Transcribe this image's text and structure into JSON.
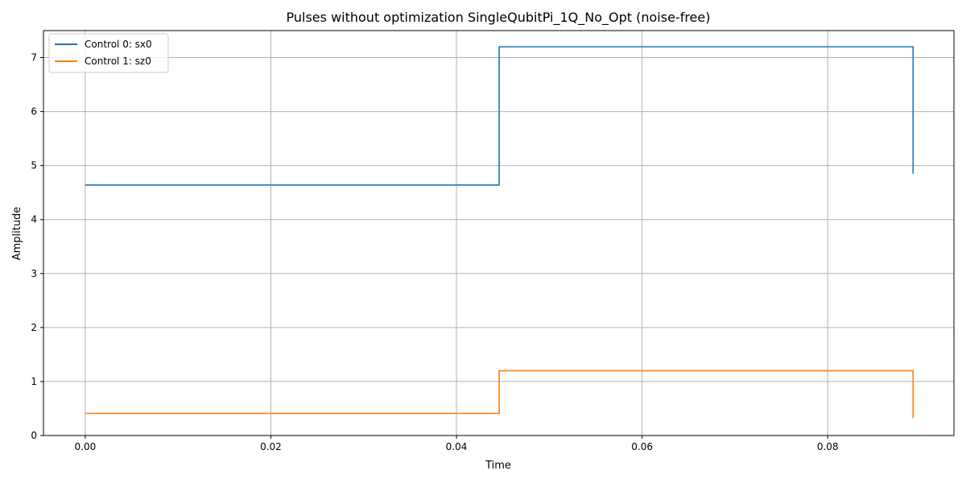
{
  "chart_data": {
    "type": "line",
    "drawstyle": "steps-post",
    "title": "Pulses without optimization SingleQubitPi_1Q_No_Opt (noise-free)",
    "xlabel": "Time",
    "ylabel": "Amplitude",
    "xlim": [
      -0.0045,
      0.0936
    ],
    "ylim": [
      0,
      7.5
    ],
    "xticks": [
      0.0,
      0.02,
      0.04,
      0.06,
      0.08
    ],
    "xtick_labels": [
      "0.00",
      "0.02",
      "0.04",
      "0.06",
      "0.08"
    ],
    "yticks": [
      0,
      1,
      2,
      3,
      4,
      5,
      6,
      7
    ],
    "ytick_labels": [
      "0",
      "1",
      "2",
      "3",
      "4",
      "5",
      "6",
      "7"
    ],
    "grid": true,
    "legend_position": "top-left",
    "series": [
      {
        "name": "Control 0: sx0",
        "color": "#1f77b4",
        "x": [
          0.0,
          0.0446,
          0.0446,
          0.0892,
          0.0892
        ],
        "y": [
          4.64,
          4.64,
          7.2,
          7.2,
          4.85
        ]
      },
      {
        "name": "Control 1: sz0",
        "color": "#ff7f0e",
        "x": [
          0.0,
          0.0446,
          0.0446,
          0.0892,
          0.0892
        ],
        "y": [
          0.41,
          0.41,
          1.2,
          1.2,
          0.32
        ]
      }
    ]
  }
}
